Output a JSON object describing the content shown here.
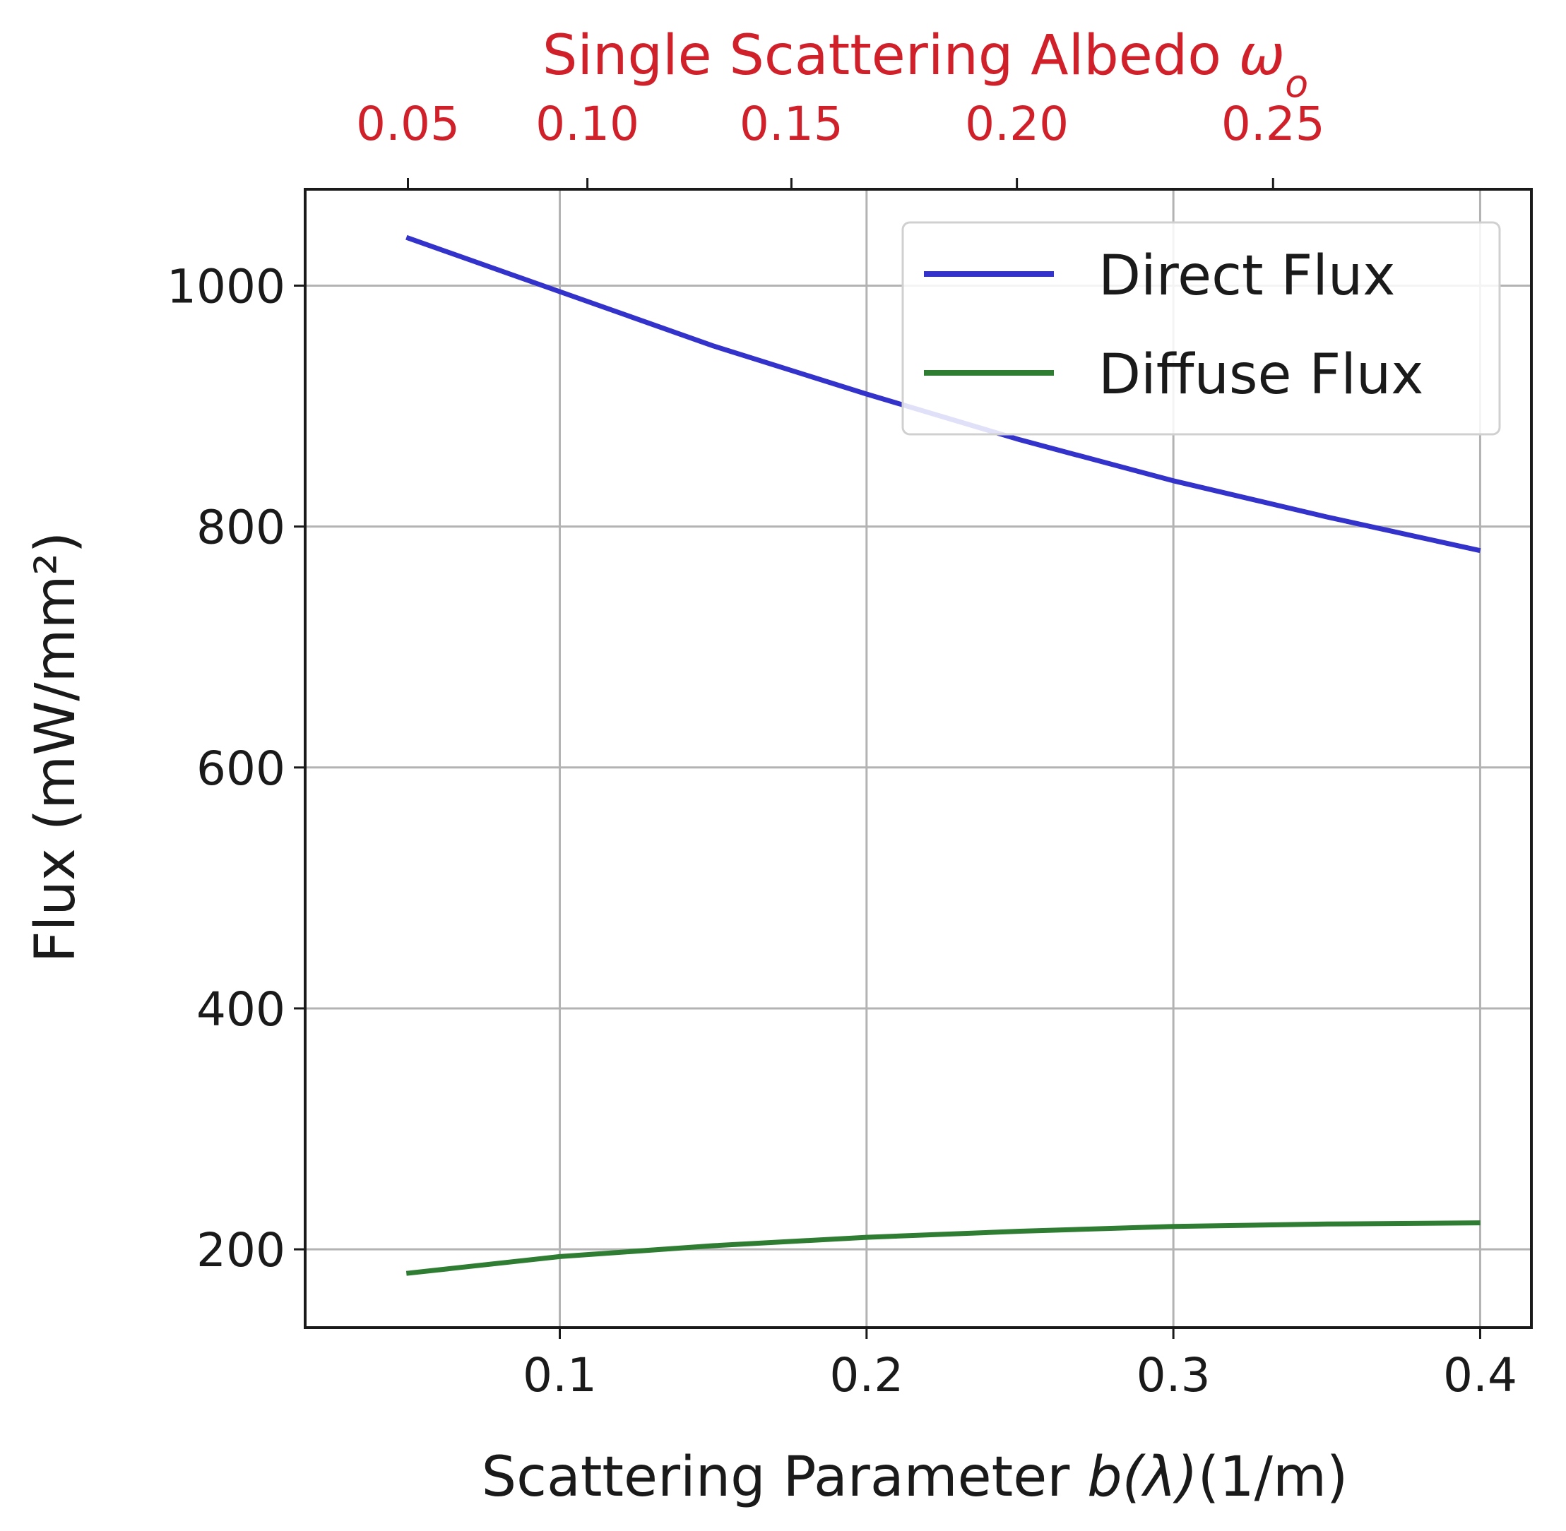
{
  "chart_data": {
    "type": "line",
    "x": [
      0.05,
      0.1,
      0.15,
      0.2,
      0.25,
      0.3,
      0.35,
      0.4
    ],
    "series": [
      {
        "name": "Direct Flux",
        "color": "#3333cc",
        "values": [
          1040,
          995,
          950,
          910,
          872,
          838,
          808,
          780
        ]
      },
      {
        "name": "Diffuse Flux",
        "color": "#2e7d32",
        "values": [
          180,
          194,
          203,
          210,
          215,
          219,
          221,
          222
        ]
      }
    ],
    "xlabel_main": "Scattering Parameter ",
    "xlabel_italic": "b(λ)",
    "xlabel_suffix": "(1/m)",
    "ylabel": "Flux (mW/mm²)",
    "xlim": [
      0.017,
      0.4167
    ],
    "ylim": [
      135,
      1080
    ],
    "xticks": [
      0.1,
      0.2,
      0.3,
      0.4
    ],
    "xtick_labels": [
      "0.1",
      "0.2",
      "0.3",
      "0.4"
    ],
    "yticks": [
      200,
      400,
      600,
      800,
      1000
    ],
    "ytick_labels": [
      "200",
      "400",
      "600",
      "800",
      "1000"
    ],
    "top_axis": {
      "label_main": "Single Scattering Albedo ",
      "label_italic": "ω",
      "label_sub": "o",
      "color": "#d0202a",
      "ticks_at_x": [
        0.0505,
        0.109,
        0.1755,
        0.249,
        0.3325
      ],
      "tick_labels": [
        "0.05",
        "0.10",
        "0.15",
        "0.20",
        "0.25"
      ]
    },
    "grid": true,
    "legend_position": "top-right"
  }
}
